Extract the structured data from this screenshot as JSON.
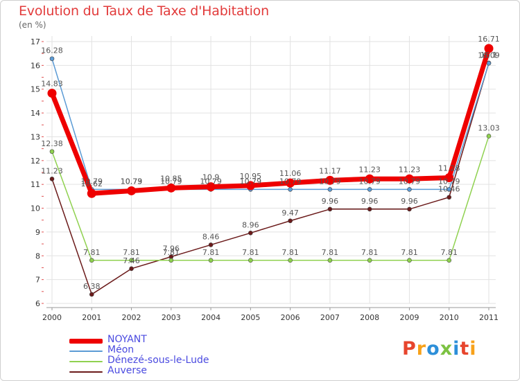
{
  "header": {
    "title": "Evolution du Taux de Taxe d'Habitation",
    "subtitle": "(en %)"
  },
  "brand": {
    "logo_text": "Proxiti",
    "letter_colors": [
      "#e7452d",
      "#f7a11a",
      "#2d8fd9",
      "#7cc242",
      "#2d8fd9",
      "#e7452d",
      "#f7a11a"
    ]
  },
  "chart_data": {
    "type": "line",
    "title": "Evolution du Taux de Taxe d'Habitation",
    "subtitle": "(en %)",
    "xlabel": "",
    "ylabel": "",
    "x": [
      "2000",
      "2001",
      "2002",
      "2003",
      "2004",
      "2005",
      "2006",
      "2007",
      "2008",
      "2009",
      "2010",
      "2011"
    ],
    "ylim": [
      6,
      17
    ],
    "yticks": [
      6,
      7,
      8,
      9,
      10,
      11,
      12,
      13,
      14,
      15,
      16,
      17
    ],
    "grid": true,
    "legend_position": "bottom-left",
    "series": [
      {
        "name": "NOYANT",
        "color": "#ee0000",
        "values": [
          14.83,
          10.62,
          10.73,
          10.85,
          10.9,
          10.95,
          11.06,
          11.17,
          11.23,
          11.23,
          11.28,
          16.71
        ],
        "labels": [
          "14.83",
          "10.62",
          "10.73",
          "10.85",
          "10.9",
          "10.95",
          "11.06",
          "11.17",
          "11.23",
          "11.23",
          "11.28",
          "16.71"
        ]
      },
      {
        "name": "Méon",
        "color": "#5b9bd5",
        "values": [
          16.28,
          10.79,
          10.79,
          10.79,
          10.79,
          10.79,
          10.79,
          10.79,
          10.79,
          10.79,
          10.79,
          16.09
        ],
        "labels": [
          "16.28",
          "10.79",
          "10.79",
          "10.79",
          "10.79",
          "10.79",
          "10.79",
          "10.79",
          "10.79",
          "10.79",
          "10.79",
          "16.09"
        ]
      },
      {
        "name": "Dénezé-sous-le-Lude",
        "color": "#8fd14f",
        "values": [
          12.38,
          7.81,
          7.81,
          7.81,
          7.81,
          7.81,
          7.81,
          7.81,
          7.81,
          7.81,
          7.81,
          13.03
        ],
        "labels": [
          "12.38",
          "7.81",
          "7.81",
          "7.81",
          "7.81",
          "7.81",
          "7.81",
          "7.81",
          "7.81",
          "7.81",
          "7.81",
          "13.03"
        ]
      },
      {
        "name": "Auverse",
        "color": "#6b1a1a",
        "values": [
          11.23,
          6.38,
          7.46,
          7.96,
          8.46,
          8.96,
          9.47,
          9.96,
          9.96,
          9.96,
          10.46,
          16.1
        ],
        "labels": [
          "11.23",
          "6.38",
          "7.46",
          "7.96",
          "8.46",
          "8.96",
          "9.47",
          "9.96",
          "9.96",
          "9.96",
          "10.46",
          "16.1"
        ]
      }
    ]
  }
}
